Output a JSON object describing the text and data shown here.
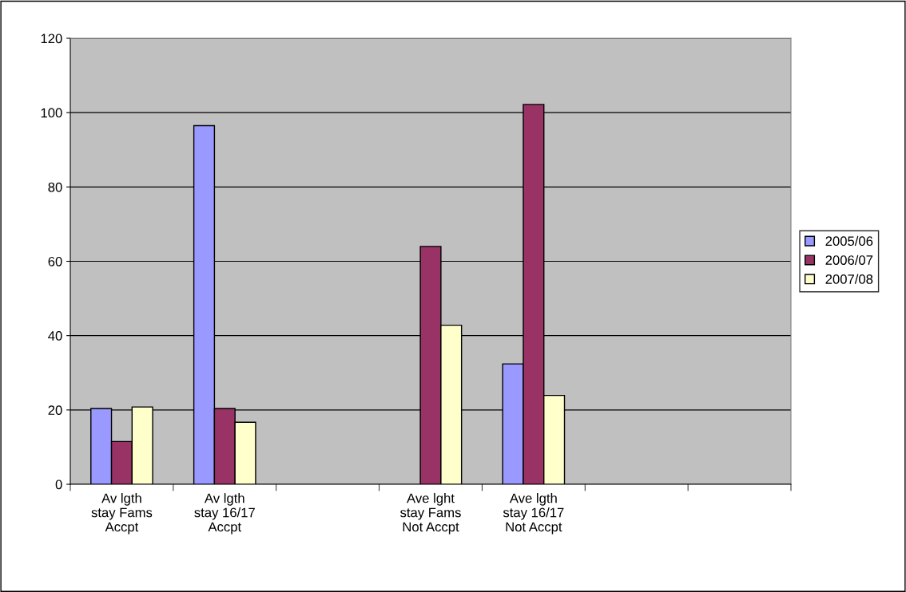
{
  "chart_data": {
    "type": "bar",
    "categories": [
      "Av lgth\nstay Fams\nAccpt",
      "Av lgth\nstay 16/17\nAccpt",
      null,
      "Ave lght\nstay Fams\nNot Accpt",
      "Ave lgth\nstay 16/17\nNot Accpt",
      null,
      null
    ],
    "series": [
      {
        "name": "2005/06",
        "color": "#9999ff",
        "values": [
          20.4,
          96.5,
          null,
          null,
          32.4,
          null,
          null
        ]
      },
      {
        "name": "2006/07",
        "color": "#993366",
        "values": [
          11.5,
          20.4,
          null,
          64.0,
          102.2,
          null,
          null
        ]
      },
      {
        "name": "2007/08",
        "color": "#ffffcc",
        "values": [
          20.8,
          16.7,
          null,
          42.8,
          23.9,
          null,
          null
        ]
      }
    ],
    "ylim": [
      0,
      120
    ],
    "yticks": [
      0,
      20,
      40,
      60,
      80,
      100,
      120
    ],
    "grid": "y",
    "legend": "right"
  }
}
